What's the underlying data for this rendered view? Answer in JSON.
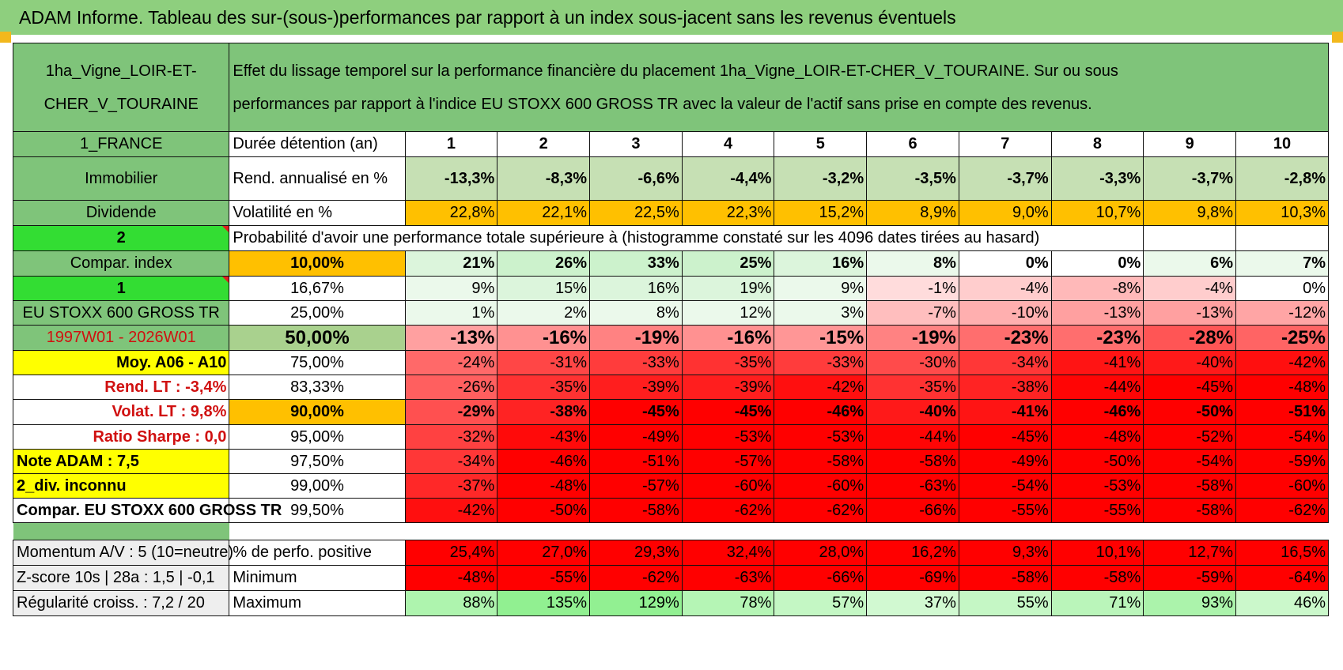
{
  "title": "ADAM Informe. Tableau des sur-(sous-)performances par rapport à un index sous-jacent sans les revenus éventuels",
  "asset_name_line1": "1ha_Vigne_LOIR-ET-",
  "asset_name_line2": "CHER_V_TOURAINE",
  "description_line1": "Effet du lissage temporel sur la performance financière du placement 1ha_Vigne_LOIR-ET-CHER_V_TOURAINE. Sur ou sous",
  "description_line2": "performances par rapport à l'indice EU STOXX 600 GROSS TR avec la valeur de l'actif sans prise en compte des revenus.",
  "left": {
    "country": "1_FRANCE",
    "category": "Immobilier",
    "income": "Dividende",
    "selector1": "2",
    "compar_label": "Compar. index",
    "selector2": "1",
    "index_name": "EU STOXX 600 GROSS TR",
    "period": "1997W01 - 2026W01",
    "moy": "Moy. A06 - A10",
    "rend_lt": "Rend. LT :   -3,4%",
    "volat_lt": "Volat. LT :   9,8%",
    "sharpe": "Ratio Sharpe :    0,0",
    "note": "Note ADAM : 7,5",
    "div": "2_div. inconnu",
    "compar_full": "Compar. EU STOXX 600 GROSS TR",
    "momentum": "Momentum A/V : 5 (10=neutre)",
    "zscore": "Z-score 10s | 28a : 1,5 | -0,1",
    "regularite": "Régularité croiss. : 7,2 / 20"
  },
  "labels": {
    "duration": "Durée détention (an)",
    "rend": "Rend. annualisé en %",
    "volat": "Volatilité en %",
    "probability": "Probabilité d'avoir une performance totale supérieure à (histogramme constaté sur les 4096 dates tirées au hasard)",
    "positive": "% de perfo. positive",
    "minimum": "Minimum",
    "maximum": "Maximum"
  },
  "years": [
    "1",
    "2",
    "3",
    "4",
    "5",
    "6",
    "7",
    "8",
    "9",
    "10"
  ],
  "rend": [
    "-13,3%",
    "-8,3%",
    "-6,6%",
    "-4,4%",
    "-3,2%",
    "-3,5%",
    "-3,7%",
    "-3,3%",
    "-3,7%",
    "-2,8%"
  ],
  "volat": [
    "22,8%",
    "22,1%",
    "22,5%",
    "22,3%",
    "15,2%",
    "8,9%",
    "9,0%",
    "10,7%",
    "9,8%",
    "10,3%"
  ],
  "percentiles": [
    {
      "p": "10,00%",
      "v": [
        "21%",
        "26%",
        "33%",
        "25%",
        "16%",
        "8%",
        "0%",
        "0%",
        "6%",
        "7%"
      ]
    },
    {
      "p": "16,67%",
      "v": [
        "9%",
        "15%",
        "16%",
        "19%",
        "9%",
        "-1%",
        "-4%",
        "-8%",
        "-4%",
        "0%"
      ]
    },
    {
      "p": "25,00%",
      "v": [
        "1%",
        "2%",
        "8%",
        "12%",
        "3%",
        "-7%",
        "-10%",
        "-13%",
        "-13%",
        "-12%"
      ]
    },
    {
      "p": "50,00%",
      "v": [
        "-13%",
        "-16%",
        "-19%",
        "-16%",
        "-15%",
        "-19%",
        "-23%",
        "-23%",
        "-28%",
        "-25%"
      ]
    },
    {
      "p": "75,00%",
      "v": [
        "-24%",
        "-31%",
        "-33%",
        "-35%",
        "-33%",
        "-30%",
        "-34%",
        "-41%",
        "-40%",
        "-42%"
      ]
    },
    {
      "p": "83,33%",
      "v": [
        "-26%",
        "-35%",
        "-39%",
        "-39%",
        "-42%",
        "-35%",
        "-38%",
        "-44%",
        "-45%",
        "-48%"
      ]
    },
    {
      "p": "90,00%",
      "v": [
        "-29%",
        "-38%",
        "-45%",
        "-45%",
        "-46%",
        "-40%",
        "-41%",
        "-46%",
        "-50%",
        "-51%"
      ]
    },
    {
      "p": "95,00%",
      "v": [
        "-32%",
        "-43%",
        "-49%",
        "-53%",
        "-53%",
        "-44%",
        "-45%",
        "-48%",
        "-52%",
        "-54%"
      ]
    },
    {
      "p": "97,50%",
      "v": [
        "-34%",
        "-46%",
        "-51%",
        "-57%",
        "-58%",
        "-58%",
        "-49%",
        "-50%",
        "-54%",
        "-59%"
      ]
    },
    {
      "p": "99,00%",
      "v": [
        "-37%",
        "-48%",
        "-57%",
        "-60%",
        "-60%",
        "-63%",
        "-54%",
        "-53%",
        "-58%",
        "-60%"
      ]
    },
    {
      "p": "99,50%",
      "v": [
        "-42%",
        "-50%",
        "-58%",
        "-62%",
        "-62%",
        "-66%",
        "-55%",
        "-55%",
        "-58%",
        "-62%"
      ]
    }
  ],
  "positive": [
    "25,4%",
    "27,0%",
    "29,3%",
    "32,4%",
    "28,0%",
    "16,2%",
    "9,3%",
    "10,1%",
    "12,7%",
    "16,5%"
  ],
  "minimum": [
    "-48%",
    "-55%",
    "-62%",
    "-63%",
    "-66%",
    "-69%",
    "-58%",
    "-58%",
    "-59%",
    "-64%"
  ],
  "maximum": [
    "88%",
    "135%",
    "129%",
    "78%",
    "57%",
    "37%",
    "55%",
    "71%",
    "93%",
    "46%"
  ],
  "colors": {
    "green": "#7fc47a",
    "lime": "#33dd33",
    "yellow": "#ffff00",
    "orange": "#ffc000",
    "red": "#ff0000",
    "text_red": "#d01010"
  }
}
